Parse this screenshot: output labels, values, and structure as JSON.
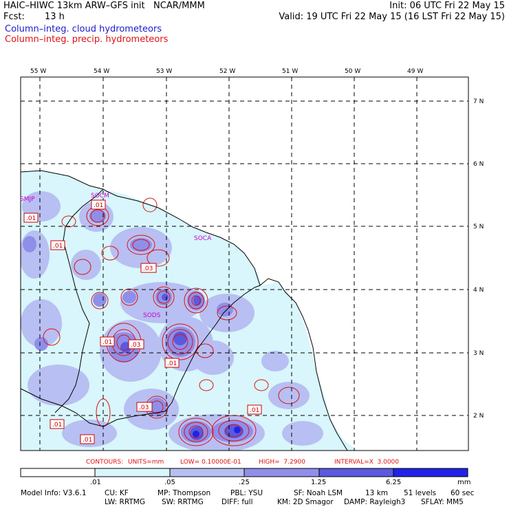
{
  "header": {
    "model": "HAIC–HIWC 13km ARW–GFS init   NCAR/MMM",
    "init": "Init: 06 UTC Fri 22 May 15",
    "fcst_label": "Fcst:",
    "fcst_value": "13 h",
    "valid": "Valid: 19 UTC Fri 22 May 15 (16 LST Fri 22 May 15)",
    "cloud_field": "Column–integ. cloud hydrometeors",
    "precip_field": "Column–integ. precip. hydrometeors"
  },
  "colors": {
    "cloud_text": "#1a1acc",
    "precip_text": "#e01010",
    "station": "#cc00cc",
    "shade_1": "#d8f6fb",
    "shade_2": "#b8bff2",
    "shade_3": "#8f8fea",
    "shade_4": "#5a5adf",
    "shade_5": "#2222e6"
  },
  "map": {
    "lon_labels": [
      "55 W",
      "54 W",
      "53 W",
      "52 W",
      "51 W",
      "50 W",
      "49 W"
    ],
    "lat_labels": [
      "7 N",
      "6 N",
      "5 N",
      "4 N",
      "3 N",
      "2 N"
    ],
    "stations": [
      "SMJP",
      "SOCM",
      "SOCA",
      "SODS"
    ],
    "contour_value_labels": [
      ".01",
      ".01",
      ".01",
      ".03",
      ".01",
      ".03",
      ".01",
      ".03",
      ".01",
      ".01"
    ]
  },
  "contour_info": {
    "title": "CONTOURS:",
    "units": "UNITS=mm",
    "low": "LOW= 0.10000E-01",
    "high": "HIGH=  7.2900",
    "interval": "INTERVAL=X  3.0000"
  },
  "colorbar": {
    "levels": [
      ".01",
      ".05",
      ".25",
      "1.25",
      "6.25"
    ],
    "unit": "mm"
  },
  "footer": {
    "line1": [
      "Model Info: V3.6.1",
      "CU: KF",
      "MP: Thompson",
      "PBL: YSU",
      "SF: Noah LSM",
      "13 km",
      "51 levels",
      "60 sec"
    ],
    "line2": [
      "LW: RRTMG",
      "SW: RRTMG",
      "DIFF: full",
      "KM: 2D Smagor",
      "DAMP: Rayleigh3",
      "SFLAY: MM5"
    ]
  }
}
